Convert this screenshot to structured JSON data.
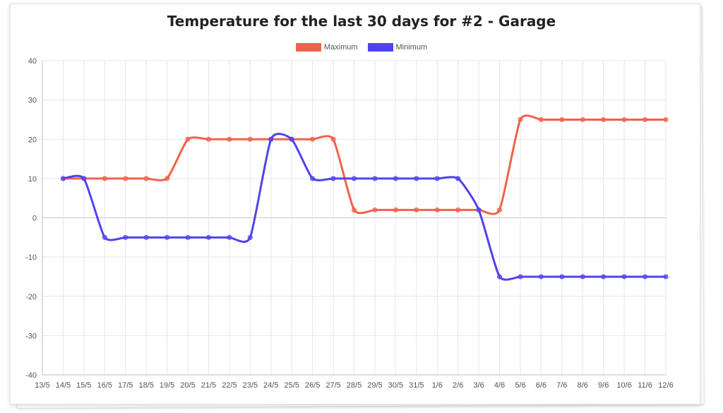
{
  "chart_data": {
    "type": "line",
    "title": "Temperature for the last 30 days for #2 - Garage",
    "xlabel": "",
    "ylabel": "",
    "ylim": [
      -40,
      40
    ],
    "yticks": [
      40,
      30,
      20,
      10,
      0,
      -10,
      -20,
      -30,
      -40
    ],
    "grid": true,
    "legend_position": "top",
    "categories": [
      "13/5",
      "14/5",
      "15/5",
      "16/5",
      "17/5",
      "18/5",
      "19/5",
      "20/5",
      "21/5",
      "22/5",
      "23/5",
      "24/5",
      "25/5",
      "26/5",
      "27/5",
      "28/5",
      "29/5",
      "30/5",
      "31/5",
      "1/6",
      "2/6",
      "3/6",
      "4/6",
      "5/6",
      "6/6",
      "7/6",
      "8/6",
      "9/6",
      "10/6",
      "11/6",
      "12/6"
    ],
    "series": [
      {
        "name": "Maximum",
        "color": "#f0624a",
        "values": [
          null,
          10,
          10,
          10,
          10,
          10,
          10,
          20,
          20,
          20,
          20,
          20,
          20,
          20,
          20,
          2,
          2,
          2,
          2,
          2,
          2,
          2,
          2,
          25,
          25,
          25,
          25,
          25,
          25,
          25,
          25
        ]
      },
      {
        "name": "Minimum",
        "color": "#5043ee",
        "values": [
          null,
          10,
          10,
          -5,
          -5,
          -5,
          -5,
          -5,
          -5,
          -5,
          -5,
          20,
          20,
          10,
          10,
          10,
          10,
          10,
          10,
          10,
          10,
          2,
          -15,
          -15,
          -15,
          -15,
          -15,
          -15,
          -15,
          -15,
          -15
        ]
      }
    ]
  }
}
